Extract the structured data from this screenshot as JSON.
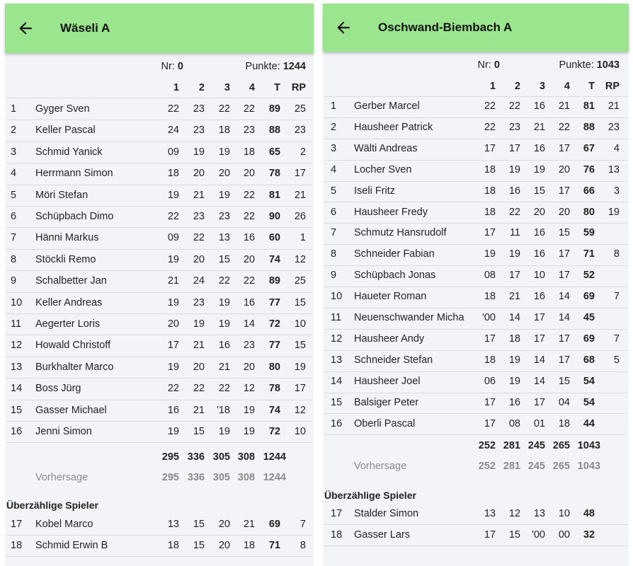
{
  "colors": {
    "appbar": "#9ae58e",
    "background": "#f3f4f8"
  },
  "icons": {
    "back": "arrow-left-icon"
  },
  "columns": [
    "1",
    "2",
    "3",
    "4",
    "T",
    "RP"
  ],
  "nr_label": "Nr:",
  "punkte_label": "Punkte:",
  "forecast_label": "Vorhersage",
  "extra_heading": "Überzählige Spieler",
  "teams": [
    {
      "title": "Wäseli A",
      "nr": "0",
      "punkte": "1244",
      "players": [
        {
          "n": "1",
          "name": "Gyger Sven",
          "s": [
            "22",
            "23",
            "22",
            "22"
          ],
          "t": "89",
          "rp": "25"
        },
        {
          "n": "2",
          "name": "Keller Pascal",
          "s": [
            "24",
            "23",
            "18",
            "23"
          ],
          "t": "88",
          "rp": "23"
        },
        {
          "n": "3",
          "name": "Schmid Yanick",
          "s": [
            "09",
            "19",
            "19",
            "18"
          ],
          "t": "65",
          "rp": "2"
        },
        {
          "n": "4",
          "name": "Herrmann Simon",
          "s": [
            "18",
            "20",
            "20",
            "20"
          ],
          "t": "78",
          "rp": "17"
        },
        {
          "n": "5",
          "name": "Möri Stefan",
          "s": [
            "19",
            "21",
            "19",
            "22"
          ],
          "t": "81",
          "rp": "21"
        },
        {
          "n": "6",
          "name": "Schüpbach Dimo",
          "s": [
            "22",
            "23",
            "23",
            "22"
          ],
          "t": "90",
          "rp": "26"
        },
        {
          "n": "7",
          "name": "Hänni Markus",
          "s": [
            "09",
            "22",
            "13",
            "16"
          ],
          "t": "60",
          "rp": "1"
        },
        {
          "n": "8",
          "name": "Stöckli Remo",
          "s": [
            "19",
            "20",
            "15",
            "20"
          ],
          "t": "74",
          "rp": "12"
        },
        {
          "n": "9",
          "name": "Schalbetter Jan",
          "s": [
            "21",
            "24",
            "22",
            "22"
          ],
          "t": "89",
          "rp": "25"
        },
        {
          "n": "10",
          "name": "Keller Andreas",
          "s": [
            "19",
            "23",
            "19",
            "16"
          ],
          "t": "77",
          "rp": "15"
        },
        {
          "n": "11",
          "name": "Aegerter Loris",
          "s": [
            "20",
            "19",
            "19",
            "14"
          ],
          "t": "72",
          "rp": "10"
        },
        {
          "n": "12",
          "name": "Howald Christoff",
          "s": [
            "17",
            "21",
            "16",
            "23"
          ],
          "t": "77",
          "rp": "15"
        },
        {
          "n": "13",
          "name": "Burkhalter Marco",
          "s": [
            "19",
            "20",
            "21",
            "20"
          ],
          "t": "80",
          "rp": "19"
        },
        {
          "n": "14",
          "name": "Boss Jürg",
          "s": [
            "22",
            "22",
            "22",
            "12"
          ],
          "t": "78",
          "rp": "17"
        },
        {
          "n": "15",
          "name": "Gasser Michael",
          "s": [
            "16",
            "21",
            "'18",
            "19"
          ],
          "t": "74",
          "rp": "12"
        },
        {
          "n": "16",
          "name": "Jenni Simon",
          "s": [
            "19",
            "15",
            "19",
            "19"
          ],
          "t": "72",
          "rp": "10"
        }
      ],
      "totals": [
        "295",
        "336",
        "305",
        "308",
        "1244"
      ],
      "forecast": [
        "295",
        "336",
        "305",
        "308",
        "1244"
      ],
      "extras": [
        {
          "n": "17",
          "name": "Kobel Marco",
          "s": [
            "13",
            "15",
            "20",
            "21"
          ],
          "t": "69",
          "rp": "7"
        },
        {
          "n": "18",
          "name": "Schmid Erwin B",
          "s": [
            "18",
            "15",
            "20",
            "18"
          ],
          "t": "71",
          "rp": "8"
        }
      ]
    },
    {
      "title": "Oschwand-Biembach A",
      "nr": "0",
      "punkte": "1043",
      "players": [
        {
          "n": "1",
          "name": "Gerber Marcel",
          "s": [
            "22",
            "22",
            "16",
            "21"
          ],
          "t": "81",
          "rp": "21"
        },
        {
          "n": "2",
          "name": "Hausheer Patrick",
          "s": [
            "22",
            "23",
            "21",
            "22"
          ],
          "t": "88",
          "rp": "23"
        },
        {
          "n": "3",
          "name": "Wälti Andreas",
          "s": [
            "17",
            "17",
            "16",
            "17"
          ],
          "t": "67",
          "rp": "4"
        },
        {
          "n": "4",
          "name": "Locher Sven",
          "s": [
            "18",
            "19",
            "19",
            "20"
          ],
          "t": "76",
          "rp": "13"
        },
        {
          "n": "5",
          "name": "Iseli Fritz",
          "s": [
            "18",
            "16",
            "15",
            "17"
          ],
          "t": "66",
          "rp": "3"
        },
        {
          "n": "6",
          "name": "Hausheer Fredy",
          "s": [
            "18",
            "22",
            "20",
            "20"
          ],
          "t": "80",
          "rp": "19"
        },
        {
          "n": "7",
          "name": "Schmutz Hansrudolf",
          "s": [
            "17",
            "11",
            "16",
            "15"
          ],
          "t": "59",
          "rp": ""
        },
        {
          "n": "8",
          "name": "Schneider Fabian",
          "s": [
            "19",
            "19",
            "16",
            "17"
          ],
          "t": "71",
          "rp": "8"
        },
        {
          "n": "9",
          "name": "Schüpbach Jonas",
          "s": [
            "08",
            "17",
            "10",
            "17"
          ],
          "t": "52",
          "rp": ""
        },
        {
          "n": "10",
          "name": "Haueter Roman",
          "s": [
            "18",
            "21",
            "16",
            "14"
          ],
          "t": "69",
          "rp": "7"
        },
        {
          "n": "11",
          "name": "Neuenschwander Micha",
          "s": [
            "'00",
            "14",
            "17",
            "14"
          ],
          "t": "45",
          "rp": ""
        },
        {
          "n": "12",
          "name": "Hausheer Andy",
          "s": [
            "17",
            "18",
            "17",
            "17"
          ],
          "t": "69",
          "rp": "7"
        },
        {
          "n": "13",
          "name": "Schneider Stefan",
          "s": [
            "18",
            "19",
            "14",
            "17"
          ],
          "t": "68",
          "rp": "5"
        },
        {
          "n": "14",
          "name": "Hausheer Joel",
          "s": [
            "06",
            "19",
            "14",
            "15"
          ],
          "t": "54",
          "rp": ""
        },
        {
          "n": "15",
          "name": "Balsiger Peter",
          "s": [
            "17",
            "16",
            "17",
            "04"
          ],
          "t": "54",
          "rp": ""
        },
        {
          "n": "16",
          "name": "Oberli Pascal",
          "s": [
            "17",
            "08",
            "01",
            "18"
          ],
          "t": "44",
          "rp": ""
        }
      ],
      "totals": [
        "252",
        "281",
        "245",
        "265",
        "1043"
      ],
      "forecast": [
        "252",
        "281",
        "245",
        "265",
        "1043"
      ],
      "extras": [
        {
          "n": "17",
          "name": "Stalder Simon",
          "s": [
            "13",
            "12",
            "13",
            "10"
          ],
          "t": "48",
          "rp": ""
        },
        {
          "n": "18",
          "name": "Gasser Lars",
          "s": [
            "17",
            "15",
            "'00",
            "00"
          ],
          "t": "32",
          "rp": ""
        }
      ]
    }
  ]
}
